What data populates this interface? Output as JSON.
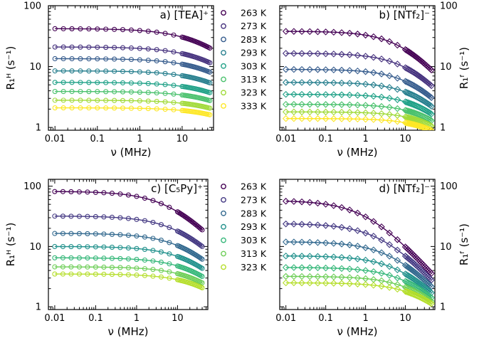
{
  "chart_data": [
    {
      "type": "scatter",
      "panel": "a",
      "title": "a) [TEA]⁺",
      "xlabel": "ν (MHz)",
      "ylabel": "R₁ᴴ (s⁻¹)",
      "xscale": "log",
      "yscale": "log",
      "xlim": [
        0.007,
        55
      ],
      "ylim": [
        0.9,
        100
      ],
      "ylabel_side": "left",
      "marker": "circle",
      "xticks": [
        "0.01",
        "0.1",
        "1",
        "10"
      ],
      "yticks": [
        "1",
        "10",
        "100"
      ],
      "fit_lines": true,
      "x_range": [
        0.01,
        45
      ],
      "series": [
        {
          "name": "263 K",
          "color": "#440154",
          "r0": 42.0,
          "nu_c": 40,
          "alpha": 0.7
        },
        {
          "name": "273 K",
          "color": "#46327e",
          "r0": 21.0,
          "nu_c": 60,
          "alpha": 0.7
        },
        {
          "name": "283 K",
          "color": "#365c8d",
          "r0": 13.5,
          "nu_c": 80,
          "alpha": 0.7
        },
        {
          "name": "293 K",
          "color": "#277f8e",
          "r0": 8.5,
          "nu_c": 100,
          "alpha": 0.7
        },
        {
          "name": "303 K",
          "color": "#1fa187",
          "r0": 5.5,
          "nu_c": 130,
          "alpha": 0.7
        },
        {
          "name": "313 K",
          "color": "#4ac16d",
          "r0": 3.9,
          "nu_c": 160,
          "alpha": 0.7
        },
        {
          "name": "323 K",
          "color": "#a0da39",
          "r0": 2.8,
          "nu_c": 200,
          "alpha": 0.7
        },
        {
          "name": "333 K",
          "color": "#fde725",
          "r0": 2.1,
          "nu_c": 250,
          "alpha": 0.7
        }
      ]
    },
    {
      "type": "scatter",
      "panel": "b",
      "title": "b) [NTf₂]⁻",
      "xlabel": "ν (MHz)",
      "ylabel": "R₁ᶠ (s⁻¹)",
      "xscale": "log",
      "yscale": "log",
      "xlim": [
        0.007,
        55
      ],
      "ylim": [
        0.9,
        100
      ],
      "ylabel_side": "right",
      "marker": "diamond",
      "xticks": [
        "0.01",
        "0.1",
        "1",
        "10"
      ],
      "yticks": [
        "1",
        "10",
        "100"
      ],
      "fit_lines": true,
      "x_range": [
        0.01,
        45
      ],
      "series": [
        {
          "name": "263 K",
          "color": "#440154",
          "r0": 38.0,
          "nu_c": 10,
          "alpha": 0.8
        },
        {
          "name": "273 K",
          "color": "#46327e",
          "r0": 16.5,
          "nu_c": 15,
          "alpha": 0.8
        },
        {
          "name": "283 K",
          "color": "#365c8d",
          "r0": 9.0,
          "nu_c": 20,
          "alpha": 0.8
        },
        {
          "name": "293 K",
          "color": "#277f8e",
          "r0": 5.5,
          "nu_c": 28,
          "alpha": 0.8
        },
        {
          "name": "303 K",
          "color": "#1fa187",
          "r0": 3.5,
          "nu_c": 40,
          "alpha": 0.8
        },
        {
          "name": "313 K",
          "color": "#4ac16d",
          "r0": 2.4,
          "nu_c": 55,
          "alpha": 0.8
        },
        {
          "name": "323 K",
          "color": "#a0da39",
          "r0": 1.8,
          "nu_c": 70,
          "alpha": 0.8
        },
        {
          "name": "333 K",
          "color": "#fde725",
          "r0": 1.4,
          "nu_c": 90,
          "alpha": 0.8
        }
      ]
    },
    {
      "type": "scatter",
      "panel": "c",
      "title": "c) [C₅Py]⁺",
      "xlabel": "ν (MHz)",
      "ylabel": "R₁ᴴ (s⁻¹)",
      "xscale": "log",
      "yscale": "log",
      "xlim": [
        0.007,
        55
      ],
      "ylim": [
        0.9,
        130
      ],
      "ylabel_side": "left",
      "marker": "circle",
      "xticks": [
        "0.01",
        "0.1",
        "1",
        "10"
      ],
      "yticks": [
        "1",
        "10",
        "100"
      ],
      "fit_lines": true,
      "x_range": [
        0.01,
        40
      ],
      "series": [
        {
          "name": "263 K",
          "color": "#440154",
          "r0": 82.0,
          "nu_c": 8,
          "alpha": 0.75
        },
        {
          "name": "273 K",
          "color": "#443983",
          "r0": 32.0,
          "nu_c": 14,
          "alpha": 0.75
        },
        {
          "name": "283 K",
          "color": "#31688e",
          "r0": 16.5,
          "nu_c": 20,
          "alpha": 0.75
        },
        {
          "name": "293 K",
          "color": "#21918c",
          "r0": 10.0,
          "nu_c": 28,
          "alpha": 0.75
        },
        {
          "name": "303 K",
          "color": "#35b779",
          "r0": 6.5,
          "nu_c": 38,
          "alpha": 0.75
        },
        {
          "name": "313 K",
          "color": "#6ece58",
          "r0": 4.6,
          "nu_c": 50,
          "alpha": 0.75
        },
        {
          "name": "323 K",
          "color": "#b5de2b",
          "r0": 3.5,
          "nu_c": 65,
          "alpha": 0.75
        }
      ]
    },
    {
      "type": "scatter",
      "panel": "d",
      "title": "d) [NTf₂]⁻",
      "xlabel": "ν (MHz)",
      "ylabel": "R₁ᶠ (s⁻¹)",
      "xscale": "log",
      "yscale": "log",
      "xlim": [
        0.007,
        55
      ],
      "ylim": [
        0.9,
        130
      ],
      "ylabel_side": "right",
      "marker": "diamond",
      "xticks": [
        "0.01",
        "0.1",
        "1",
        "10"
      ],
      "yticks": [
        "1",
        "10",
        "100"
      ],
      "fit_lines": true,
      "x_range": [
        0.01,
        45
      ],
      "series": [
        {
          "name": "263 K",
          "color": "#440154",
          "r0": 58.0,
          "nu_c": 1.2,
          "alpha": 0.75
        },
        {
          "name": "273 K",
          "color": "#443983",
          "r0": 24.0,
          "nu_c": 3,
          "alpha": 0.75
        },
        {
          "name": "283 K",
          "color": "#31688e",
          "r0": 12.0,
          "nu_c": 6,
          "alpha": 0.75
        },
        {
          "name": "293 K",
          "color": "#21918c",
          "r0": 7.0,
          "nu_c": 10,
          "alpha": 0.75
        },
        {
          "name": "303 K",
          "color": "#35b779",
          "r0": 4.5,
          "nu_c": 16,
          "alpha": 0.75
        },
        {
          "name": "313 K",
          "color": "#6ece58",
          "r0": 3.2,
          "nu_c": 24,
          "alpha": 0.75
        },
        {
          "name": "323 K",
          "color": "#b5de2b",
          "r0": 2.5,
          "nu_c": 35,
          "alpha": 0.75
        }
      ]
    }
  ],
  "legends": [
    {
      "placement": "between-a-b",
      "entries": [
        "263 K",
        "273 K",
        "283 K",
        "293 K",
        "303 K",
        "313 K",
        "323 K",
        "333 K"
      ],
      "colors": [
        "#440154",
        "#46327e",
        "#365c8d",
        "#277f8e",
        "#1fa187",
        "#4ac16d",
        "#a0da39",
        "#fde725"
      ]
    },
    {
      "placement": "between-c-d",
      "entries": [
        "263 K",
        "273 K",
        "283 K",
        "293 K",
        "303 K",
        "313 K",
        "323 K"
      ],
      "colors": [
        "#440154",
        "#443983",
        "#31688e",
        "#21918c",
        "#35b779",
        "#6ece58",
        "#b5de2b"
      ]
    }
  ]
}
